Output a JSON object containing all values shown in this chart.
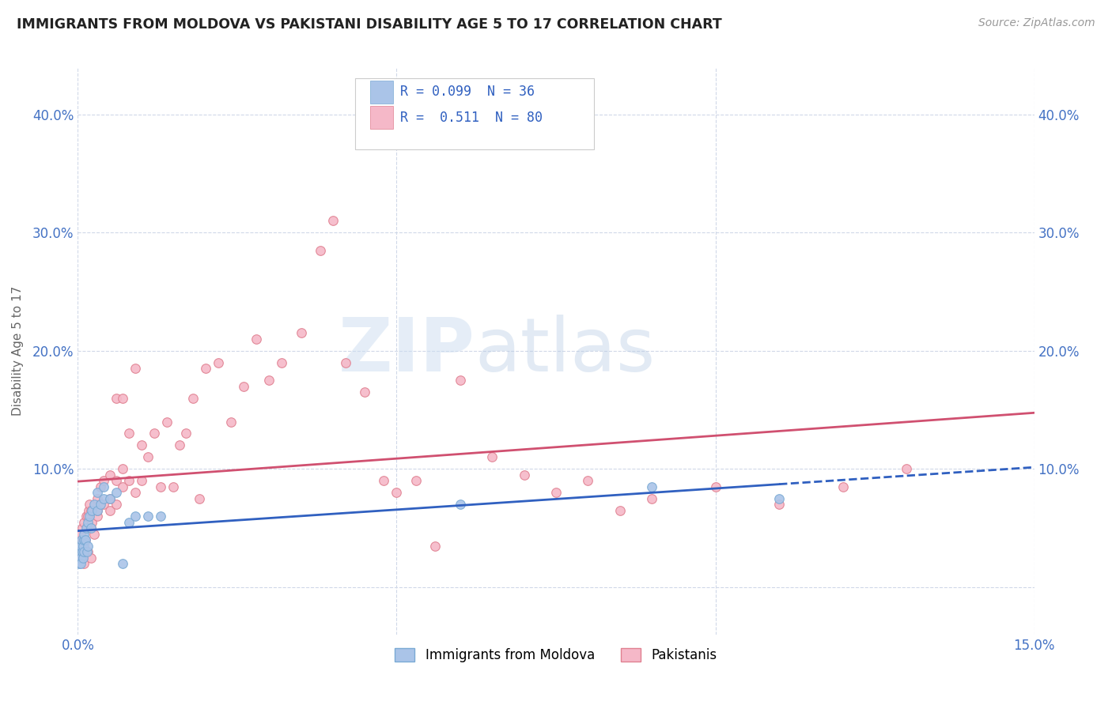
{
  "title": "IMMIGRANTS FROM MOLDOVA VS PAKISTANI DISABILITY AGE 5 TO 17 CORRELATION CHART",
  "source": "Source: ZipAtlas.com",
  "ylabel": "Disability Age 5 to 17",
  "xlim": [
    0,
    0.15
  ],
  "ylim": [
    -0.04,
    0.44
  ],
  "yticks": [
    0.0,
    0.1,
    0.2,
    0.3,
    0.4
  ],
  "xticks": [
    0.0,
    0.05,
    0.1,
    0.15
  ],
  "moldova_R": 0.099,
  "moldova_N": 36,
  "pakistan_R": 0.511,
  "pakistan_N": 80,
  "moldova_color": "#aac4e8",
  "moldova_edge": "#7aaad4",
  "pakistan_color": "#f5b8c8",
  "pakistan_edge": "#e08090",
  "moldova_line_color": "#3060c0",
  "pakistan_line_color": "#d05070",
  "legend_label_moldova": "Immigrants from Moldova",
  "legend_label_pakistan": "Pakistanis",
  "watermark_zip": "ZIP",
  "watermark_atlas": "atlas",
  "background_color": "#ffffff",
  "moldova_x": [
    0.0002,
    0.0003,
    0.0004,
    0.0005,
    0.0005,
    0.0006,
    0.0007,
    0.0008,
    0.0008,
    0.0009,
    0.001,
    0.001,
    0.0012,
    0.0013,
    0.0014,
    0.0015,
    0.0016,
    0.0018,
    0.002,
    0.0022,
    0.0025,
    0.003,
    0.003,
    0.0035,
    0.004,
    0.004,
    0.005,
    0.006,
    0.007,
    0.008,
    0.009,
    0.011,
    0.013,
    0.06,
    0.09,
    0.11
  ],
  "moldova_y": [
    0.02,
    0.03,
    0.025,
    0.02,
    0.035,
    0.04,
    0.03,
    0.035,
    0.025,
    0.04,
    0.03,
    0.045,
    0.04,
    0.05,
    0.03,
    0.035,
    0.055,
    0.06,
    0.05,
    0.065,
    0.07,
    0.065,
    0.08,
    0.07,
    0.075,
    0.085,
    0.075,
    0.08,
    0.02,
    0.055,
    0.06,
    0.06,
    0.06,
    0.07,
    0.085,
    0.075
  ],
  "pakistan_x": [
    0.0002,
    0.0003,
    0.0004,
    0.0005,
    0.0006,
    0.0007,
    0.0008,
    0.0009,
    0.001,
    0.001,
    0.0012,
    0.0013,
    0.0014,
    0.0015,
    0.0016,
    0.0017,
    0.0018,
    0.002,
    0.002,
    0.002,
    0.0022,
    0.0025,
    0.003,
    0.003,
    0.003,
    0.0035,
    0.0035,
    0.004,
    0.004,
    0.005,
    0.005,
    0.005,
    0.006,
    0.006,
    0.006,
    0.007,
    0.007,
    0.007,
    0.008,
    0.008,
    0.009,
    0.009,
    0.01,
    0.01,
    0.011,
    0.012,
    0.013,
    0.014,
    0.015,
    0.016,
    0.017,
    0.018,
    0.019,
    0.02,
    0.022,
    0.024,
    0.026,
    0.028,
    0.03,
    0.032,
    0.035,
    0.038,
    0.04,
    0.042,
    0.045,
    0.048,
    0.05,
    0.053,
    0.056,
    0.06,
    0.065,
    0.07,
    0.075,
    0.08,
    0.085,
    0.09,
    0.1,
    0.11,
    0.12,
    0.13
  ],
  "pakistan_y": [
    0.03,
    0.04,
    0.025,
    0.045,
    0.03,
    0.05,
    0.04,
    0.035,
    0.02,
    0.055,
    0.04,
    0.06,
    0.05,
    0.03,
    0.06,
    0.065,
    0.07,
    0.025,
    0.05,
    0.065,
    0.055,
    0.045,
    0.06,
    0.075,
    0.065,
    0.07,
    0.085,
    0.07,
    0.09,
    0.065,
    0.075,
    0.095,
    0.07,
    0.09,
    0.16,
    0.085,
    0.1,
    0.16,
    0.09,
    0.13,
    0.08,
    0.185,
    0.09,
    0.12,
    0.11,
    0.13,
    0.085,
    0.14,
    0.085,
    0.12,
    0.13,
    0.16,
    0.075,
    0.185,
    0.19,
    0.14,
    0.17,
    0.21,
    0.175,
    0.19,
    0.215,
    0.285,
    0.31,
    0.19,
    0.165,
    0.09,
    0.08,
    0.09,
    0.035,
    0.175,
    0.11,
    0.095,
    0.08,
    0.09,
    0.065,
    0.075,
    0.085,
    0.07,
    0.085,
    0.1
  ],
  "grid_color": "#d0d8e8",
  "tick_color": "#4472C4"
}
